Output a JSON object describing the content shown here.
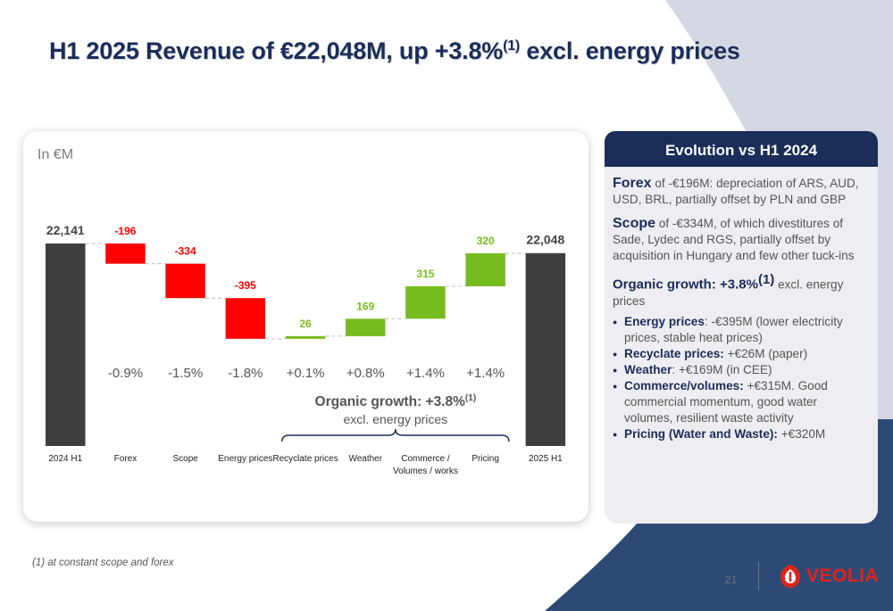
{
  "title": {
    "main": "H1 2025 Revenue of €22,048M, up +3.8%",
    "sup": "(1)",
    "tail": " excl. energy prices"
  },
  "unit_label": "In €M",
  "chart_data": {
    "type": "waterfall",
    "title": "",
    "categories": [
      "2024 H1",
      "Forex",
      "Scope",
      "Energy prices",
      "Recyclate prices",
      "Weather",
      "Commerce /",
      "Pricing",
      "2025 H1"
    ],
    "category_sublabels": [
      "",
      "",
      "",
      "",
      "",
      "",
      "Volumes / works",
      "",
      ""
    ],
    "values": [
      22141,
      -196,
      -334,
      -395,
      26,
      169,
      315,
      320,
      22048
    ],
    "value_labels": [
      "22,141",
      "-196",
      "-334",
      "-395",
      "26",
      "169",
      "315",
      "320",
      "22,048"
    ],
    "kinds": [
      "total",
      "delta",
      "delta",
      "delta",
      "delta",
      "delta",
      "delta",
      "delta",
      "total"
    ],
    "percent_labels": [
      "",
      "-0.9%",
      "-1.5%",
      "-1.8%",
      "+0.1%",
      "+0.8%",
      "+1.4%",
      "+1.4%",
      ""
    ],
    "y_axis_break": true,
    "colors": {
      "total": "#3f3f3f",
      "negative": "#ff0000",
      "positive": "#77bc1f"
    },
    "bracket_label": "Organic growth: +3.8%",
    "bracket_sup": "(1)",
    "bracket_sublabel": "excl. energy prices"
  },
  "panel": {
    "header": "Evolution vs H1 2024",
    "forex_kw": "Forex",
    "forex_text": " of -€196M: depreciation of ARS, AUD, USD, BRL, partially offset by PLN and GBP",
    "scope_kw": "Scope",
    "scope_text": " of -€334M, of which divestitures of Sade, Lydec  and RGS, partially offset by acquisition in Hungary and few other tuck-ins",
    "organic_kw": "Organic growth: +3.8%",
    "organic_sup": "(1)",
    "organic_tail": " excl. energy prices",
    "bullets": [
      {
        "label": "Energy prices",
        "text": ": -€395M (lower electricity prices, stable heat prices)"
      },
      {
        "label": "Recyclate prices:",
        "text": " +€26M (paper)"
      },
      {
        "label": "Weather",
        "text": ": +€169M (in CEE)"
      },
      {
        "label": "Commerce/volumes:",
        "text": " +€315M. Good commercial momentum, good water volumes, resilient waste activity"
      },
      {
        "label": "Pricing (Water and Waste):",
        "text": " +€320M"
      }
    ]
  },
  "footnote": "(1)  at constant scope and forex",
  "page_number": "21",
  "logo_text": "VEOLIA"
}
